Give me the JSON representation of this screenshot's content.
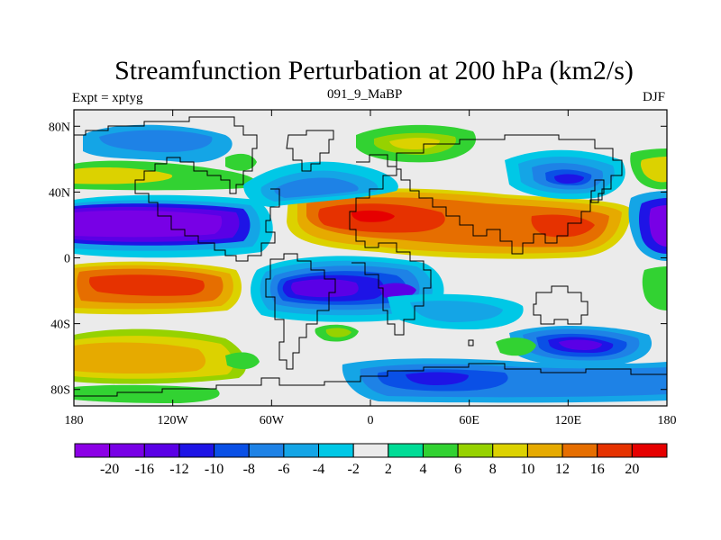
{
  "title": "Streamfunction Perturbation at 200 hPa (km2/s)",
  "subtitle_left": "Expt = xptyg",
  "subtitle_center": "091_9_MaBP",
  "subtitle_right": "DJF",
  "map": {
    "projection": "cylindrical-equidistant",
    "lon_range": [
      -180,
      180
    ],
    "lat_range": [
      -90,
      90
    ],
    "lon_ticks": [
      {
        "value": -180,
        "label": "180"
      },
      {
        "value": -120,
        "label": "120W"
      },
      {
        "value": -60,
        "label": "60W"
      },
      {
        "value": 0,
        "label": "0"
      },
      {
        "value": 60,
        "label": "60E"
      },
      {
        "value": 120,
        "label": "120E"
      },
      {
        "value": 180,
        "label": "180"
      }
    ],
    "lat_ticks": [
      {
        "value": 80,
        "label": "80N"
      },
      {
        "value": 40,
        "label": "40N"
      },
      {
        "value": 0,
        "label": "0"
      },
      {
        "value": -40,
        "label": "40S"
      },
      {
        "value": -80,
        "label": "80S"
      }
    ],
    "background_color": "#ebebeb",
    "coastline_color": "#000000"
  },
  "colorbar": {
    "labels": [
      "-20",
      "-16",
      "-12",
      "-10",
      "-8",
      "-6",
      "-4",
      "-2",
      "2",
      "4",
      "6",
      "8",
      "10",
      "12",
      "16",
      "20"
    ],
    "colors": [
      "#8c00e6",
      "#7800e6",
      "#5a00e6",
      "#1e14e6",
      "#0a50e6",
      "#1e82e6",
      "#14a5e6",
      "#00c8e6",
      "#ebebeb",
      "#00dc96",
      "#32d232",
      "#96d200",
      "#dcd200",
      "#e6aa00",
      "#e66e00",
      "#e63200",
      "#e60000"
    ]
  },
  "chart_data": {
    "type": "heatmap",
    "variable": "Streamfunction Perturbation at 200 hPa (km2/s)",
    "season": "DJF",
    "contour_levels": [
      -20,
      -16,
      -12,
      -10,
      -8,
      -6,
      -4,
      -2,
      2,
      4,
      6,
      8,
      10,
      12,
      16,
      20
    ],
    "features": [
      {
        "lon": -150,
        "lat": 20,
        "value": -22
      },
      {
        "lon": -140,
        "lat": -18,
        "value": 18
      },
      {
        "lon": -150,
        "lat": 70,
        "value": -8
      },
      {
        "lon": -50,
        "lat": -25,
        "value": -18
      },
      {
        "lon": 20,
        "lat": -25,
        "value": -14
      },
      {
        "lon": 0,
        "lat": 25,
        "value": 20
      },
      {
        "lon": 80,
        "lat": 20,
        "value": 16
      },
      {
        "lon": 120,
        "lat": 18,
        "value": 16
      },
      {
        "lon": 120,
        "lat": 45,
        "value": -12
      },
      {
        "lon": 130,
        "lat": -55,
        "value": -16
      },
      {
        "lon": 40,
        "lat": -72,
        "value": -12
      },
      {
        "lon": -150,
        "lat": -65,
        "value": 10
      },
      {
        "lon": 180,
        "lat": 20,
        "value": -20
      },
      {
        "lon": 30,
        "lat": 70,
        "value": 6
      }
    ]
  }
}
